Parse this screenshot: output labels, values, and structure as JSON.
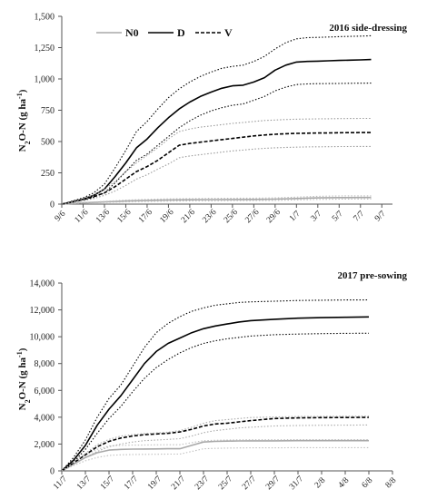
{
  "chart_data": [
    {
      "type": "line",
      "title": "2016 side-dressing",
      "ylabel": "N2O-N (g ha-1)",
      "ylabel_parts": [
        "N",
        "2",
        "O-N (g ha",
        "-1",
        ")"
      ],
      "ylim": [
        0,
        1500
      ],
      "yticks": [
        0,
        250,
        500,
        750,
        1000,
        1250,
        1500
      ],
      "ytick_labels": [
        "0",
        "250",
        "500",
        "750",
        "1,000",
        "1,250",
        "1,500"
      ],
      "x_range": [
        0,
        31
      ],
      "xticks": [
        0,
        2,
        4,
        6,
        8,
        10,
        12,
        14,
        16,
        18,
        20,
        22,
        24,
        26,
        28,
        30
      ],
      "xtick_labels": [
        "9/6",
        "11/6",
        "13/6",
        "15/6",
        "17/6",
        "19/6",
        "21/6",
        "23/6",
        "25/6",
        "27/6",
        "29/6",
        "1/7",
        "3/7",
        "5/7",
        "7/7",
        "9/7"
      ],
      "legend": {
        "placement": "top-left",
        "entries": [
          "N0",
          "D",
          "V"
        ]
      },
      "grid": false,
      "series": [
        {
          "name": "N0",
          "role": "mean",
          "color": "#a9a9a9",
          "dash": "solid",
          "x": [
            0,
            2,
            4,
            6,
            8,
            10,
            12,
            14,
            16,
            18,
            20,
            22,
            24,
            26,
            28,
            29
          ],
          "values": [
            0,
            10,
            18,
            25,
            30,
            33,
            35,
            36,
            37,
            38,
            40,
            45,
            50,
            52,
            53,
            53
          ]
        },
        {
          "name": "N0",
          "role": "upper",
          "color": "#bbbbbb",
          "dash": "dotted",
          "x": [
            0,
            2,
            4,
            6,
            8,
            10,
            12,
            14,
            16,
            18,
            20,
            22,
            24,
            26,
            28,
            29
          ],
          "values": [
            0,
            12,
            22,
            32,
            38,
            42,
            44,
            46,
            47,
            48,
            50,
            56,
            62,
            65,
            66,
            66
          ]
        },
        {
          "name": "N0",
          "role": "lower",
          "color": "#bbbbbb",
          "dash": "dotted",
          "x": [
            0,
            2,
            4,
            6,
            8,
            10,
            12,
            14,
            16,
            18,
            20,
            22,
            24,
            26,
            28,
            29
          ],
          "values": [
            0,
            8,
            14,
            18,
            22,
            24,
            26,
            27,
            28,
            29,
            30,
            34,
            38,
            40,
            41,
            41
          ]
        },
        {
          "name": "D",
          "role": "mean",
          "color": "#000000",
          "dash": "solid",
          "x": [
            0,
            2,
            3,
            4,
            5,
            6,
            7,
            8,
            9,
            10,
            11,
            12,
            13,
            14,
            15,
            16,
            17,
            18,
            19,
            20,
            21,
            22,
            23,
            24,
            25,
            26,
            27,
            28,
            29
          ],
          "values": [
            0,
            40,
            70,
            120,
            220,
            330,
            450,
            520,
            610,
            690,
            760,
            815,
            860,
            895,
            925,
            945,
            950,
            975,
            1010,
            1070,
            1110,
            1135,
            1140,
            1142,
            1145,
            1148,
            1150,
            1152,
            1155
          ]
        },
        {
          "name": "D",
          "role": "upper",
          "color": "#000000",
          "dash": "dotted",
          "x": [
            0,
            2,
            3,
            4,
            5,
            6,
            7,
            8,
            9,
            10,
            11,
            12,
            13,
            14,
            15,
            16,
            17,
            18,
            19,
            20,
            21,
            22,
            23,
            24,
            25,
            26,
            27,
            28,
            29
          ],
          "values": [
            0,
            50,
            90,
            160,
            290,
            430,
            580,
            660,
            760,
            850,
            920,
            975,
            1020,
            1055,
            1085,
            1100,
            1110,
            1140,
            1180,
            1240,
            1290,
            1320,
            1330,
            1332,
            1335,
            1338,
            1340,
            1342,
            1345
          ]
        },
        {
          "name": "D",
          "role": "lower",
          "color": "#000000",
          "dash": "dotted",
          "x": [
            0,
            2,
            3,
            4,
            5,
            6,
            7,
            8,
            9,
            10,
            11,
            12,
            13,
            14,
            15,
            16,
            17,
            18,
            19,
            20,
            21,
            22,
            23,
            24,
            25,
            26,
            27,
            28,
            29
          ],
          "values": [
            0,
            30,
            55,
            90,
            170,
            260,
            350,
            400,
            470,
            540,
            610,
            665,
            710,
            745,
            770,
            790,
            800,
            830,
            860,
            905,
            935,
            955,
            960,
            962,
            963,
            964,
            965,
            966,
            967
          ]
        },
        {
          "name": "V",
          "role": "mean",
          "color": "#000000",
          "dash": "dashed",
          "x": [
            0,
            2,
            3,
            4,
            5,
            6,
            7,
            8,
            9,
            10,
            11,
            12,
            13,
            14,
            15,
            16,
            17,
            18,
            19,
            20,
            21,
            22,
            23,
            24,
            25,
            26,
            27,
            28,
            29
          ],
          "values": [
            0,
            35,
            60,
            90,
            140,
            200,
            260,
            300,
            350,
            410,
            470,
            485,
            495,
            505,
            515,
            525,
            535,
            545,
            552,
            558,
            562,
            565,
            567,
            568,
            569,
            570,
            571,
            572,
            572
          ]
        },
        {
          "name": "V",
          "role": "upper",
          "color": "#999999",
          "dash": "dotted",
          "x": [
            0,
            2,
            3,
            4,
            5,
            6,
            7,
            8,
            9,
            10,
            11,
            12,
            13,
            14,
            15,
            16,
            17,
            18,
            19,
            20,
            21,
            22,
            23,
            24,
            25,
            26,
            27,
            28,
            29
          ],
          "values": [
            0,
            40,
            75,
            120,
            180,
            260,
            330,
            390,
            450,
            520,
            580,
            600,
            615,
            625,
            635,
            645,
            652,
            660,
            668,
            672,
            676,
            678,
            680,
            681,
            682,
            683,
            684,
            685,
            685
          ]
        },
        {
          "name": "V",
          "role": "lower",
          "color": "#999999",
          "dash": "dotted",
          "x": [
            0,
            2,
            3,
            4,
            5,
            6,
            7,
            8,
            9,
            10,
            11,
            12,
            13,
            14,
            15,
            16,
            17,
            18,
            19,
            20,
            21,
            22,
            23,
            24,
            25,
            26,
            27,
            28,
            29
          ],
          "values": [
            0,
            28,
            45,
            70,
            105,
            150,
            200,
            235,
            280,
            320,
            370,
            385,
            395,
            405,
            415,
            425,
            432,
            440,
            446,
            450,
            453,
            455,
            457,
            458,
            459,
            460,
            460,
            461,
            461
          ]
        }
      ]
    },
    {
      "type": "line",
      "title": "2017 pre-sowing",
      "ylabel": "N2O-N (g ha-1)",
      "ylabel_parts": [
        "N",
        "2",
        "O-N (g ha",
        "-1",
        ")"
      ],
      "ylim": [
        0,
        14000
      ],
      "yticks": [
        0,
        2000,
        4000,
        6000,
        8000,
        10000,
        12000,
        14000
      ],
      "ytick_labels": [
        "0",
        "2,000",
        "4,000",
        "6,000",
        "8,000",
        "10,000",
        "12,000",
        "14,000"
      ],
      "x_range": [
        0,
        28
      ],
      "xticks": [
        0,
        2,
        4,
        6,
        8,
        10,
        12,
        14,
        16,
        18,
        20,
        22,
        24,
        26,
        28
      ],
      "xtick_labels": [
        "11/7",
        "13/7",
        "15/7",
        "17/7",
        "19/7",
        "21/7",
        "23/7",
        "25/7",
        "27/7",
        "29/7",
        "31/7",
        "2/8",
        "4/8",
        "6/8",
        "8/8"
      ],
      "grid": false,
      "series": [
        {
          "name": "N0",
          "role": "mean",
          "color": "#a9a9a9",
          "dash": "solid",
          "x": [
            0,
            1,
            2,
            3,
            4,
            5,
            6,
            7,
            8,
            9,
            10,
            11,
            12,
            13,
            14,
            15,
            16,
            18,
            20,
            22,
            24,
            26
          ],
          "values": [
            0,
            500,
            1000,
            1350,
            1550,
            1600,
            1620,
            1630,
            1640,
            1650,
            1650,
            1900,
            2150,
            2200,
            2220,
            2230,
            2240,
            2240,
            2250,
            2250,
            2250,
            2250
          ]
        },
        {
          "name": "N0",
          "role": "upper",
          "color": "#c0c0c0",
          "dash": "dotted",
          "x": [
            0,
            1,
            2,
            3,
            4,
            5,
            6,
            7,
            8,
            9,
            10,
            11,
            12,
            13,
            14,
            15,
            16,
            18,
            20,
            22,
            24,
            26
          ],
          "values": [
            0,
            600,
            1200,
            1600,
            1850,
            1900,
            1920,
            1930,
            1940,
            1950,
            1950,
            2100,
            2250,
            2280,
            2300,
            2310,
            2320,
            2320,
            2330,
            2330,
            2330,
            2330
          ]
        },
        {
          "name": "N0",
          "role": "lower",
          "color": "#c0c0c0",
          "dash": "dotted",
          "x": [
            0,
            1,
            2,
            3,
            4,
            5,
            6,
            7,
            8,
            9,
            10,
            11,
            12,
            13,
            14,
            15,
            16,
            18,
            20,
            22,
            24,
            26
          ],
          "values": [
            0,
            400,
            750,
            1000,
            1150,
            1200,
            1220,
            1230,
            1240,
            1250,
            1250,
            1450,
            1650,
            1680,
            1700,
            1710,
            1720,
            1720,
            1730,
            1730,
            1730,
            1730
          ]
        },
        {
          "name": "D",
          "role": "mean",
          "color": "#000000",
          "dash": "solid",
          "x": [
            0,
            1,
            2,
            3,
            4,
            5,
            6,
            7,
            8,
            9,
            10,
            11,
            12,
            13,
            14,
            15,
            16,
            18,
            20,
            22,
            24,
            26
          ],
          "values": [
            0,
            800,
            1900,
            3400,
            4600,
            5600,
            6800,
            8000,
            8900,
            9500,
            9900,
            10300,
            10600,
            10800,
            10950,
            11100,
            11200,
            11300,
            11380,
            11420,
            11450,
            11480
          ]
        },
        {
          "name": "D",
          "role": "upper",
          "color": "#000000",
          "dash": "dotted",
          "x": [
            0,
            1,
            2,
            3,
            4,
            5,
            6,
            7,
            8,
            9,
            10,
            11,
            12,
            13,
            14,
            15,
            16,
            18,
            20,
            22,
            24,
            26
          ],
          "values": [
            0,
            1000,
            2300,
            4000,
            5400,
            6400,
            7800,
            9200,
            10300,
            11000,
            11500,
            11900,
            12150,
            12350,
            12450,
            12550,
            12600,
            12650,
            12700,
            12720,
            12740,
            12750
          ]
        },
        {
          "name": "D",
          "role": "lower",
          "color": "#000000",
          "dash": "dotted",
          "x": [
            0,
            1,
            2,
            3,
            4,
            5,
            6,
            7,
            8,
            9,
            10,
            11,
            12,
            13,
            14,
            15,
            16,
            18,
            20,
            22,
            24,
            26
          ],
          "values": [
            0,
            650,
            1600,
            2800,
            3900,
            4800,
            5900,
            6900,
            7700,
            8300,
            8800,
            9200,
            9500,
            9700,
            9850,
            9950,
            10050,
            10150,
            10200,
            10230,
            10250,
            10260
          ]
        },
        {
          "name": "V",
          "role": "mean",
          "color": "#000000",
          "dash": "dashed",
          "x": [
            0,
            1,
            2,
            3,
            4,
            5,
            6,
            7,
            8,
            9,
            10,
            11,
            12,
            13,
            14,
            15,
            16,
            18,
            20,
            22,
            24,
            26
          ],
          "values": [
            0,
            600,
            1200,
            1800,
            2200,
            2450,
            2600,
            2700,
            2750,
            2800,
            2900,
            3100,
            3350,
            3500,
            3550,
            3650,
            3750,
            3900,
            3950,
            3970,
            3980,
            3990
          ]
        },
        {
          "name": "V",
          "role": "upper",
          "color": "#aaaaaa",
          "dash": "dotted",
          "x": [
            0,
            1,
            2,
            3,
            4,
            5,
            6,
            7,
            8,
            9,
            10,
            11,
            12,
            13,
            14,
            15,
            16,
            18,
            20,
            22,
            24,
            26
          ],
          "values": [
            0,
            650,
            1300,
            1950,
            2350,
            2600,
            2700,
            2780,
            2830,
            2880,
            3000,
            3250,
            3550,
            3750,
            3820,
            3900,
            3980,
            4020,
            4050,
            4060,
            4070,
            4080
          ]
        },
        {
          "name": "V",
          "role": "lower",
          "color": "#aaaaaa",
          "dash": "dotted",
          "x": [
            0,
            1,
            2,
            3,
            4,
            5,
            6,
            7,
            8,
            9,
            10,
            11,
            12,
            13,
            14,
            15,
            16,
            18,
            20,
            22,
            24,
            26
          ],
          "values": [
            0,
            500,
            1000,
            1450,
            1800,
            2000,
            2150,
            2250,
            2300,
            2350,
            2400,
            2600,
            2850,
            3000,
            3100,
            3200,
            3250,
            3350,
            3380,
            3400,
            3410,
            3420
          ]
        }
      ]
    }
  ]
}
